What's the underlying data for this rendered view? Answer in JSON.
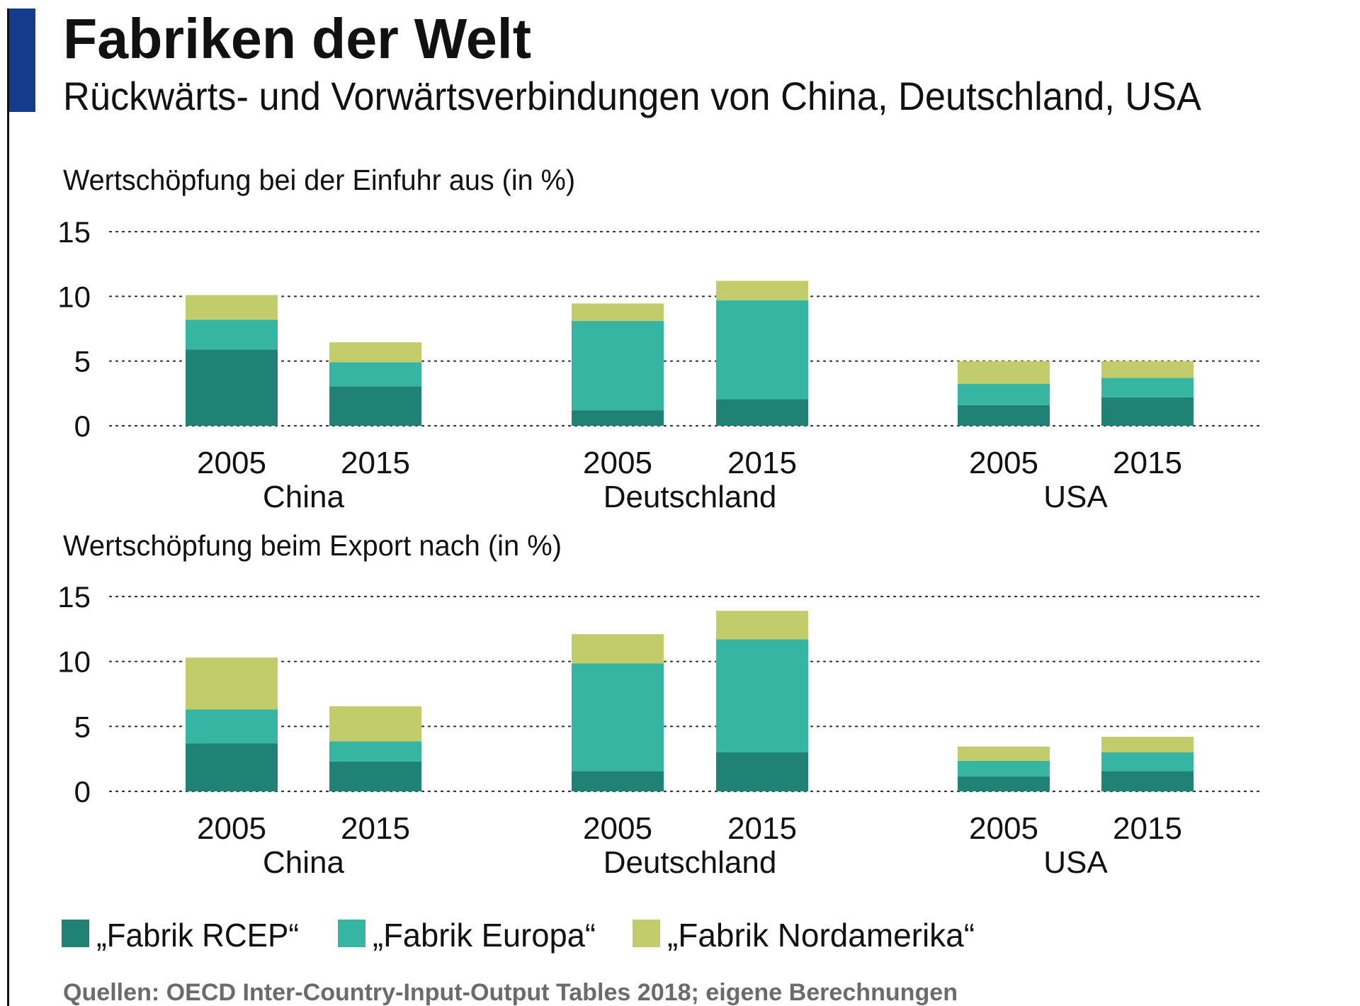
{
  "title": "Fabriken der Welt",
  "subtitle": "Rückwärts- und Vorwärtsverbindungen von China, Deutschland, USA",
  "source": "Quellen: OECD Inter-Country-Input-Output Tables 2018; eigene Berechnungen",
  "colors": {
    "accent_bar": "#143b8c",
    "rcep": "#1f8274",
    "europa": "#35b5a2",
    "nordamerika": "#c3cc6a"
  },
  "legend": [
    "„Fabrik RCEP“",
    "„Fabrik Europa“",
    "„Fabrik Nordamerika“"
  ],
  "chart_data": [
    {
      "type": "bar",
      "stacked": true,
      "title": "Wertschöpfung bei der Einfuhr aus (in %)",
      "groups": [
        "China",
        "Deutschland",
        "USA"
      ],
      "categories": [
        "2005",
        "2015"
      ],
      "ylim": [
        0,
        15
      ],
      "yticks": [
        "0",
        "5",
        "10",
        "15"
      ],
      "grid": true,
      "series": [
        {
          "name": "„Fabrik RCEP“",
          "values": [
            [
              5.9,
              3.05
            ],
            [
              1.2,
              2.05
            ],
            [
              1.6,
              2.2
            ]
          ]
        },
        {
          "name": "„Fabrik Europa“",
          "values": [
            [
              2.3,
              1.85
            ],
            [
              6.9,
              7.65
            ],
            [
              1.65,
              1.5
            ]
          ]
        },
        {
          "name": "„Fabrik Nordamerika“",
          "values": [
            [
              1.9,
              1.55
            ],
            [
              1.35,
              1.5
            ],
            [
              1.75,
              1.3
            ]
          ]
        }
      ]
    },
    {
      "type": "bar",
      "stacked": true,
      "title": "Wertschöpfung beim Export nach (in %)",
      "groups": [
        "China",
        "Deutschland",
        "USA"
      ],
      "categories": [
        "2005",
        "2015"
      ],
      "ylim": [
        0,
        15
      ],
      "yticks": [
        "0",
        "5",
        "10",
        "15"
      ],
      "grid": true,
      "series": [
        {
          "name": "„Fabrik RCEP“",
          "values": [
            [
              3.7,
              2.3
            ],
            [
              1.55,
              3.0
            ],
            [
              1.15,
              1.55
            ]
          ]
        },
        {
          "name": "„Fabrik Europa“",
          "values": [
            [
              2.6,
              1.55
            ],
            [
              8.3,
              8.7
            ],
            [
              1.2,
              1.45
            ]
          ]
        },
        {
          "name": "„Fabrik Nordamerika“",
          "values": [
            [
              4.0,
              2.7
            ],
            [
              2.25,
              2.2
            ],
            [
              1.1,
              1.2
            ]
          ]
        }
      ]
    }
  ]
}
